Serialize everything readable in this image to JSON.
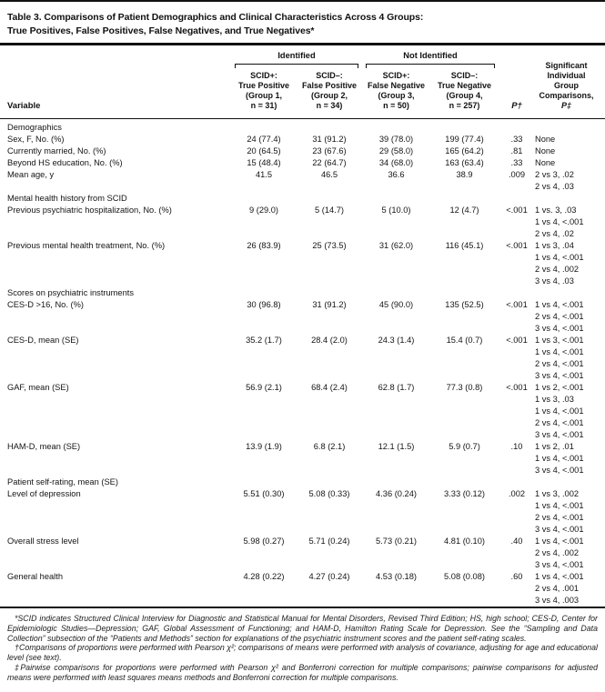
{
  "title": {
    "line1": "Table 3. Comparisons of Patient Demographics and Clinical Characteristics Across 4 Groups:",
    "line2": "True Positives, False Positives, False Negatives, and True Negatives*"
  },
  "header": {
    "variable": "Variable",
    "spanner_identified": "Identified",
    "spanner_not_identified": "Not Identified",
    "groups": [
      {
        "lines": [
          "SCID+:",
          "True Positive",
          "(Group 1,",
          "n = 31)"
        ]
      },
      {
        "lines": [
          "SCID–:",
          "False Positive",
          "(Group 2,",
          "n = 34)"
        ]
      },
      {
        "lines": [
          "SCID+:",
          "False Negative",
          "(Group 3,",
          "n = 50)"
        ]
      },
      {
        "lines": [
          "SCID–:",
          "True Negative",
          "(Group 4,",
          "n = 257)"
        ]
      }
    ],
    "p": "P†",
    "comparisons": [
      "Significant",
      "Individual",
      "Group",
      "Comparisons,",
      "P‡"
    ]
  },
  "sections": [
    {
      "label": "Demographics",
      "rows": [
        {
          "label": "Sex, F, No. (%)",
          "values": [
            "24 (77.4)",
            "31 (91.2)",
            "39 (78.0)",
            "199 (77.4)"
          ],
          "p": ".33",
          "comparisons": [
            "None"
          ]
        },
        {
          "label": "Currently married, No. (%)",
          "values": [
            "20 (64.5)",
            "23 (67.6)",
            "29 (58.0)",
            "165 (64.2)"
          ],
          "p": ".81",
          "comparisons": [
            "None"
          ]
        },
        {
          "label": "Beyond HS education, No. (%)",
          "values": [
            "15 (48.4)",
            "22 (64.7)",
            "34 (68.0)",
            "163 (63.4)"
          ],
          "p": ".33",
          "comparisons": [
            "None"
          ]
        },
        {
          "label": "Mean age, y",
          "values": [
            "41.5",
            "46.5",
            "36.6",
            "38.9"
          ],
          "p": ".009",
          "comparisons": [
            "2 vs 3, .02",
            "2 vs 4, .03"
          ]
        }
      ]
    },
    {
      "label": "Mental health history from SCID",
      "rows": [
        {
          "label": "Previous psychiatric hospitalization, No. (%)",
          "values": [
            "9 (29.0)",
            "5 (14.7)",
            "5 (10.0)",
            "12 (4.7)"
          ],
          "p": "<.001",
          "comparisons": [
            "1 vs. 3, .03",
            "1 vs 4, <.001",
            "2 vs 4, .02"
          ]
        },
        {
          "label": "Previous mental health treatment, No. (%)",
          "values": [
            "26 (83.9)",
            "25 (73.5)",
            "31 (62.0)",
            "116 (45.1)"
          ],
          "p": "<.001",
          "comparisons": [
            "1 vs 3, .04",
            "1 vs 4, <.001",
            "2 vs 4, .002",
            "3 vs 4, .03"
          ]
        }
      ]
    },
    {
      "label": "Scores on psychiatric instruments",
      "rows": [
        {
          "label": "CES-D >16, No. (%)",
          "values": [
            "30 (96.8)",
            "31 (91.2)",
            "45 (90.0)",
            "135 (52.5)"
          ],
          "p": "<.001",
          "comparisons": [
            "1 vs 4, <.001",
            "2 vs 4, <.001",
            "3 vs 4, <.001"
          ]
        },
        {
          "label": "CES-D, mean (SE)",
          "values": [
            "35.2 (1.7)",
            "28.4 (2.0)",
            "24.3 (1.4)",
            "15.4 (0.7)"
          ],
          "p": "<.001",
          "comparisons": [
            "1 vs 3, <.001",
            "1 vs 4, <.001",
            "2 vs 4, <.001",
            "3 vs 4, <.001"
          ]
        },
        {
          "label": "GAF, mean (SE)",
          "values": [
            "56.9 (2.1)",
            "68.4 (2.4)",
            "62.8 (1.7)",
            "77.3 (0.8)"
          ],
          "p": "<.001",
          "comparisons": [
            "1 vs 2, <.001",
            "1 vs 3, .03",
            "1 vs 4, <.001",
            "2 vs 4, <.001",
            "3 vs 4, <.001"
          ]
        },
        {
          "label": "HAM-D, mean (SE)",
          "values": [
            "13.9 (1.9)",
            "6.8 (2.1)",
            "12.1 (1.5)",
            "5.9 (0.7)"
          ],
          "p": ".10",
          "comparisons": [
            "1 vs 2, .01",
            "1 vs 4, <.001",
            "3 vs 4, <.001"
          ]
        }
      ]
    },
    {
      "label": "Patient self-rating, mean (SE)",
      "rows": [
        {
          "label": "Level of depression",
          "values": [
            "5.51 (0.30)",
            "5.08 (0.33)",
            "4.36 (0.24)",
            "3.33 (0.12)"
          ],
          "p": ".002",
          "comparisons": [
            "1 vs 3, .002",
            "1 vs 4, <.001",
            "2 vs 4, <.001",
            "3 vs 4, <.001"
          ]
        },
        {
          "label": "Overall stress level",
          "values": [
            "5.98 (0.27)",
            "5.71 (0.24)",
            "5.73 (0.21)",
            "4.81 (0.10)"
          ],
          "p": ".40",
          "comparisons": [
            "1 vs 4, <.001",
            "2 vs 4, .002",
            "3 vs 4, <.001"
          ]
        },
        {
          "label": "General health",
          "values": [
            "4.28 (0.22)",
            "4.27 (0.24)",
            "4.53 (0.18)",
            "5.08 (0.08)"
          ],
          "p": ".60",
          "comparisons": [
            "1 vs 4, <.001",
            "2 vs 4, .001",
            "3 vs 4, .003"
          ]
        }
      ]
    }
  ],
  "footnotes": [
    "*SCID indicates Structured Clinical Interview for Diagnostic and Statistical Manual for Mental Disorders, Revised Third Edition; HS, high school; CES-D, Center for Epidemiologic Studies—Depression; GAF, Global Assessment of Functioning; and HAM-D, Hamilton Rating Scale for Depression. See the “Sampling and Data Collection” subsection of the “Patients and Methods” section for explanations of the psychiatric instrument scores and the patient self-rating scales.",
    "†Comparisons of proportions were performed with Pearson χ²; comparisons of means were performed with analysis of covariance, adjusting for age and educational level (see text).",
    "‡Pairwise comparisons for proportions were performed with Pearson χ² and Bonferroni correction for multiple comparisons; pairwise comparisons for adjusted means were performed with least squares means methods and Bonferroni correction for multiple comparisons."
  ]
}
